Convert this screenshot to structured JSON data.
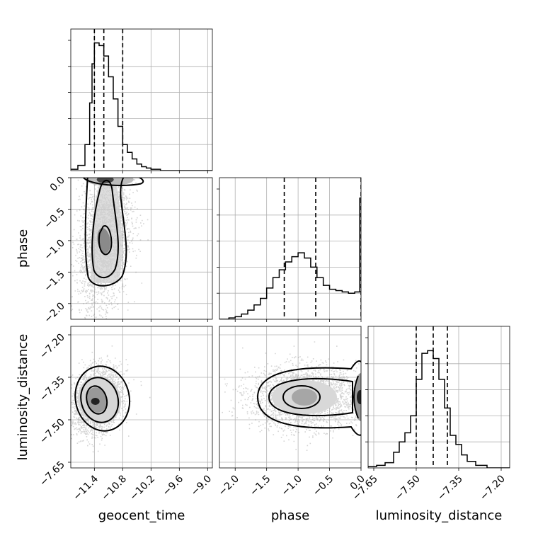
{
  "chart_data": {
    "type": "corner",
    "parameters": [
      "geocent_time",
      "phase",
      "luminosity_distance"
    ],
    "grid": true,
    "colors": {
      "line": "#000000",
      "grid": "#b0b0b0",
      "scatter": "#888888",
      "shade_dark": "#222222"
    },
    "geocent_time": {
      "label": "geocent_time",
      "range": [
        -11.9,
        -8.9
      ],
      "ticks": [
        -11.4,
        -10.8,
        -10.2,
        -9.6,
        -9.0
      ],
      "tick_labels": [
        "−11.4",
        "−10.8",
        "−10.2",
        "−9.6",
        "−9.0"
      ],
      "hist_x": [
        -11.9,
        -11.75,
        -11.6,
        -11.5,
        -11.45,
        -11.4,
        -11.3,
        -11.2,
        -11.1,
        -11.0,
        -10.9,
        -10.8,
        -10.7,
        -10.6,
        -10.5,
        -10.4,
        -10.3,
        -10.2,
        -10.0,
        -9.8
      ],
      "hist_y": [
        0.01,
        0.04,
        0.2,
        0.52,
        0.82,
        0.98,
        0.96,
        0.88,
        0.72,
        0.55,
        0.34,
        0.2,
        0.14,
        0.09,
        0.05,
        0.03,
        0.02,
        0.01,
        0.0,
        0.0
      ],
      "quantiles": [
        -11.4,
        -11.2,
        -10.8
      ]
    },
    "phase": {
      "label": "phase",
      "range": [
        -2.25,
        0.0
      ],
      "ticks": [
        -2.0,
        -1.5,
        -1.0,
        -0.5,
        0.0
      ],
      "tick_labels": [
        "−2.0",
        "−1.5",
        "−1.0",
        "−0.5",
        "0.0"
      ],
      "hist_x": [
        -2.25,
        -2.1,
        -2.0,
        -1.9,
        -1.8,
        -1.7,
        -1.6,
        -1.5,
        -1.4,
        -1.3,
        -1.2,
        -1.1,
        -1.0,
        -0.9,
        -0.8,
        -0.7,
        -0.6,
        -0.5,
        -0.4,
        -0.3,
        -0.2,
        -0.1,
        -0.02
      ],
      "hist_y": [
        0.0,
        0.01,
        0.02,
        0.04,
        0.07,
        0.11,
        0.16,
        0.24,
        0.32,
        0.38,
        0.44,
        0.48,
        0.51,
        0.47,
        0.4,
        0.32,
        0.26,
        0.23,
        0.22,
        0.21,
        0.2,
        0.21,
        0.93
      ],
      "quantiles": [
        -1.22,
        -0.72,
        0.0
      ]
    },
    "luminosity_distance": {
      "label": "luminosity_distance",
      "range": [
        -7.67,
        -7.17
      ],
      "ticks": [
        -7.65,
        -7.5,
        -7.35,
        -7.2
      ],
      "tick_labels": [
        "−7.65",
        "−7.50",
        "−7.35",
        "−7.20"
      ],
      "hist_x": [
        -7.67,
        -7.64,
        -7.61,
        -7.58,
        -7.56,
        -7.54,
        -7.52,
        -7.5,
        -7.48,
        -7.46,
        -7.44,
        -7.42,
        -7.4,
        -7.38,
        -7.36,
        -7.34,
        -7.32,
        -7.29,
        -7.25
      ],
      "hist_y": [
        0.01,
        0.02,
        0.04,
        0.12,
        0.2,
        0.27,
        0.4,
        0.68,
        0.88,
        0.9,
        0.84,
        0.68,
        0.46,
        0.25,
        0.18,
        0.1,
        0.05,
        0.02,
        0.0
      ],
      "quantiles": [
        -7.5,
        -7.44,
        -7.39
      ]
    },
    "posterior_2d": {
      "geocent_phase": {
        "x_mode": -11.2,
        "y_mode": -1.0
      },
      "geocent_dist": {
        "x_mode": -11.35,
        "y_mode": -7.43
      },
      "phase_dist": {
        "x_mode": -0.9,
        "y_mode": -7.42
      }
    }
  }
}
